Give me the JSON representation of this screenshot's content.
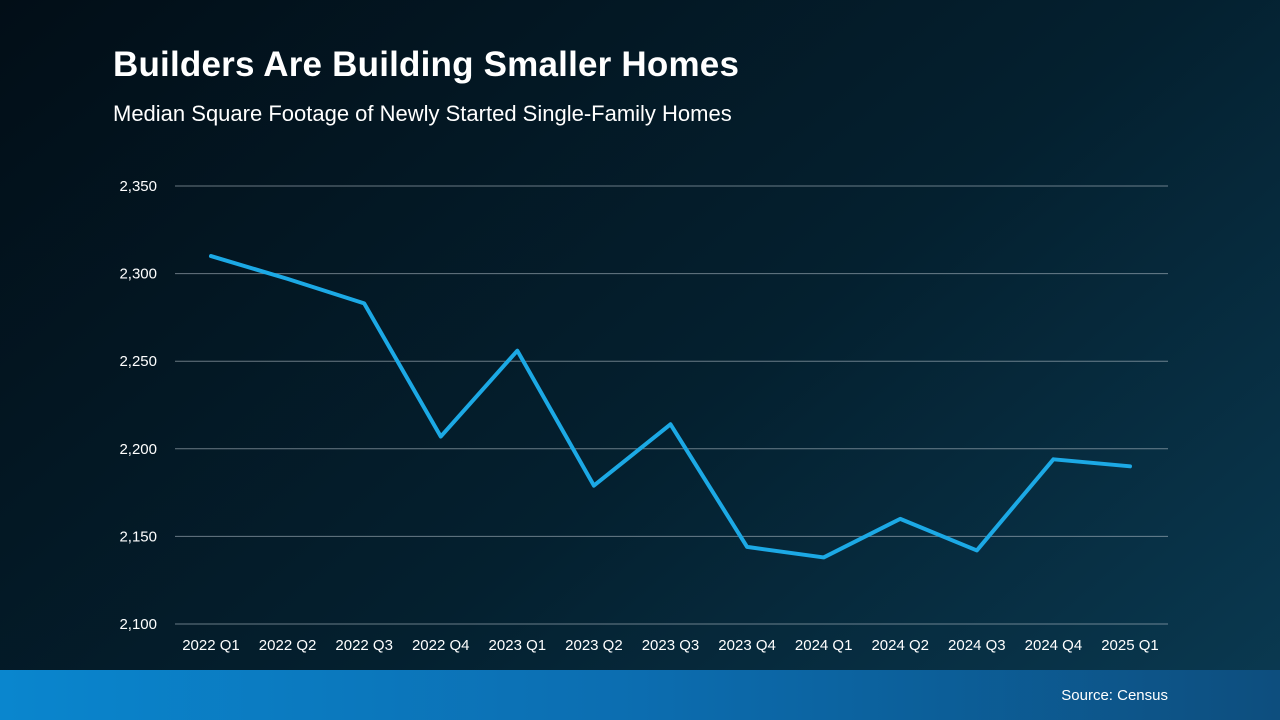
{
  "chart_data": {
    "type": "line",
    "title": "Builders Are Building Smaller Homes",
    "subtitle": "Median Square Footage of Newly Started Single-Family Homes",
    "categories": [
      "2022 Q1",
      "2022 Q2",
      "2022 Q3",
      "2022 Q4",
      "2023 Q1",
      "2023 Q2",
      "2023 Q3",
      "2023 Q4",
      "2024 Q1",
      "2024 Q2",
      "2024 Q3",
      "2024 Q4",
      "2025 Q1"
    ],
    "values": [
      2310,
      2297,
      2283,
      2207,
      2256,
      2179,
      2214,
      2144,
      2138,
      2160,
      2142,
      2194,
      2190
    ],
    "ylim": [
      2100,
      2350
    ],
    "ytick_step": 50,
    "grid": true,
    "legend": "none",
    "line_color": "#1ca9e5",
    "gridline_color": "rgba(190, 200, 210, 0.55)",
    "label_color": "#ffffff"
  },
  "footer": {
    "source": "Source: Census"
  }
}
